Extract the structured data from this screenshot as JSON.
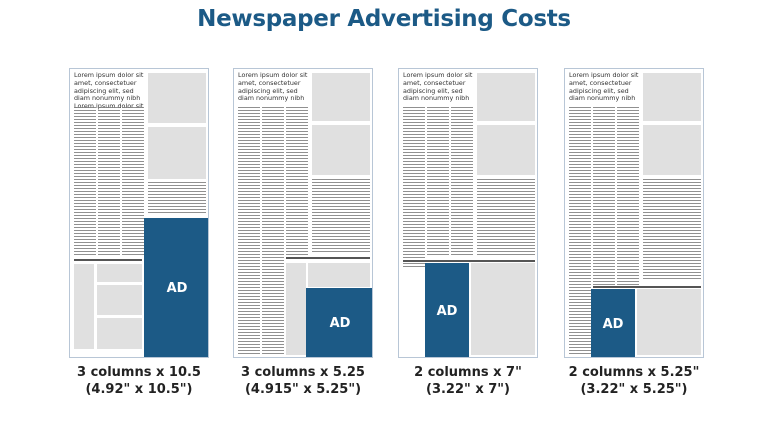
{
  "title": "Newspaper Advertising Costs",
  "layouts": [
    {
      "headline": "Lorem ipsum dolor sit amet, consectetuer adipiscing elit, sed diam nonummy nibh Lorem ipsum dolor sit",
      "ad_label": "AD",
      "caption_line1": "3 columns x 10.5",
      "caption_line2": "(4.92\" x 10.5\")"
    },
    {
      "headline": "Lorem ipsum dolor sit amet, consectetuer adipiscing elit, sed diam nonummy nibh",
      "ad_label": "AD",
      "caption_line1": "3 columns x 5.25",
      "caption_line2": "(4.915\" x 5.25\")"
    },
    {
      "headline": "Lorem ipsum dolor sit amet, consectetuer adipiscing elit, sed diam nonummy nibh",
      "ad_label": "AD",
      "caption_line1": "2 columns x 7\"",
      "caption_line2": "(3.22\" x 7\")"
    },
    {
      "headline": "Lorem ipsum dolor sit amet, consectetuer adipiscing elit, sed diam nonummy nibh",
      "ad_label": "AD",
      "caption_line1": "2 columns x 5.25\"",
      "caption_line2": "(3.22\" x 5.25\")"
    }
  ],
  "colors": {
    "accent": "#1c5a86",
    "placeholder": "#e0e0e0"
  }
}
